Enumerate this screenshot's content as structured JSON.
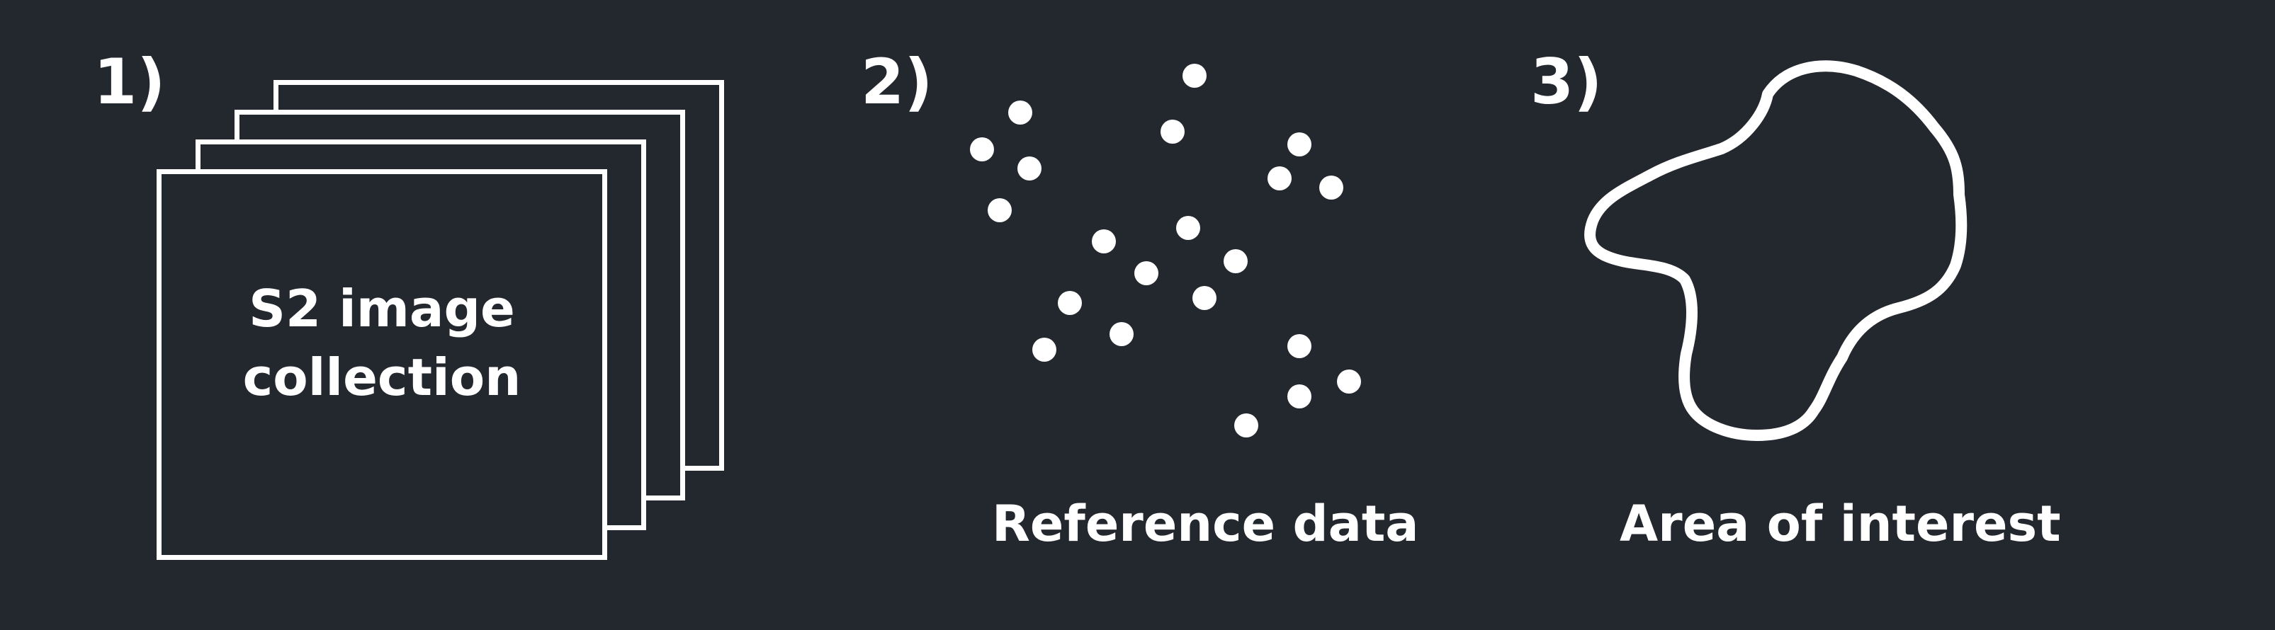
{
  "panels": [
    {
      "number": "1)",
      "label": "S2 image\ncollection"
    },
    {
      "number": "2)",
      "label": "Reference data"
    },
    {
      "number": "3)",
      "label": "Area of interest"
    }
  ],
  "colors": {
    "background": "#23272e",
    "foreground": "#ffffff"
  }
}
